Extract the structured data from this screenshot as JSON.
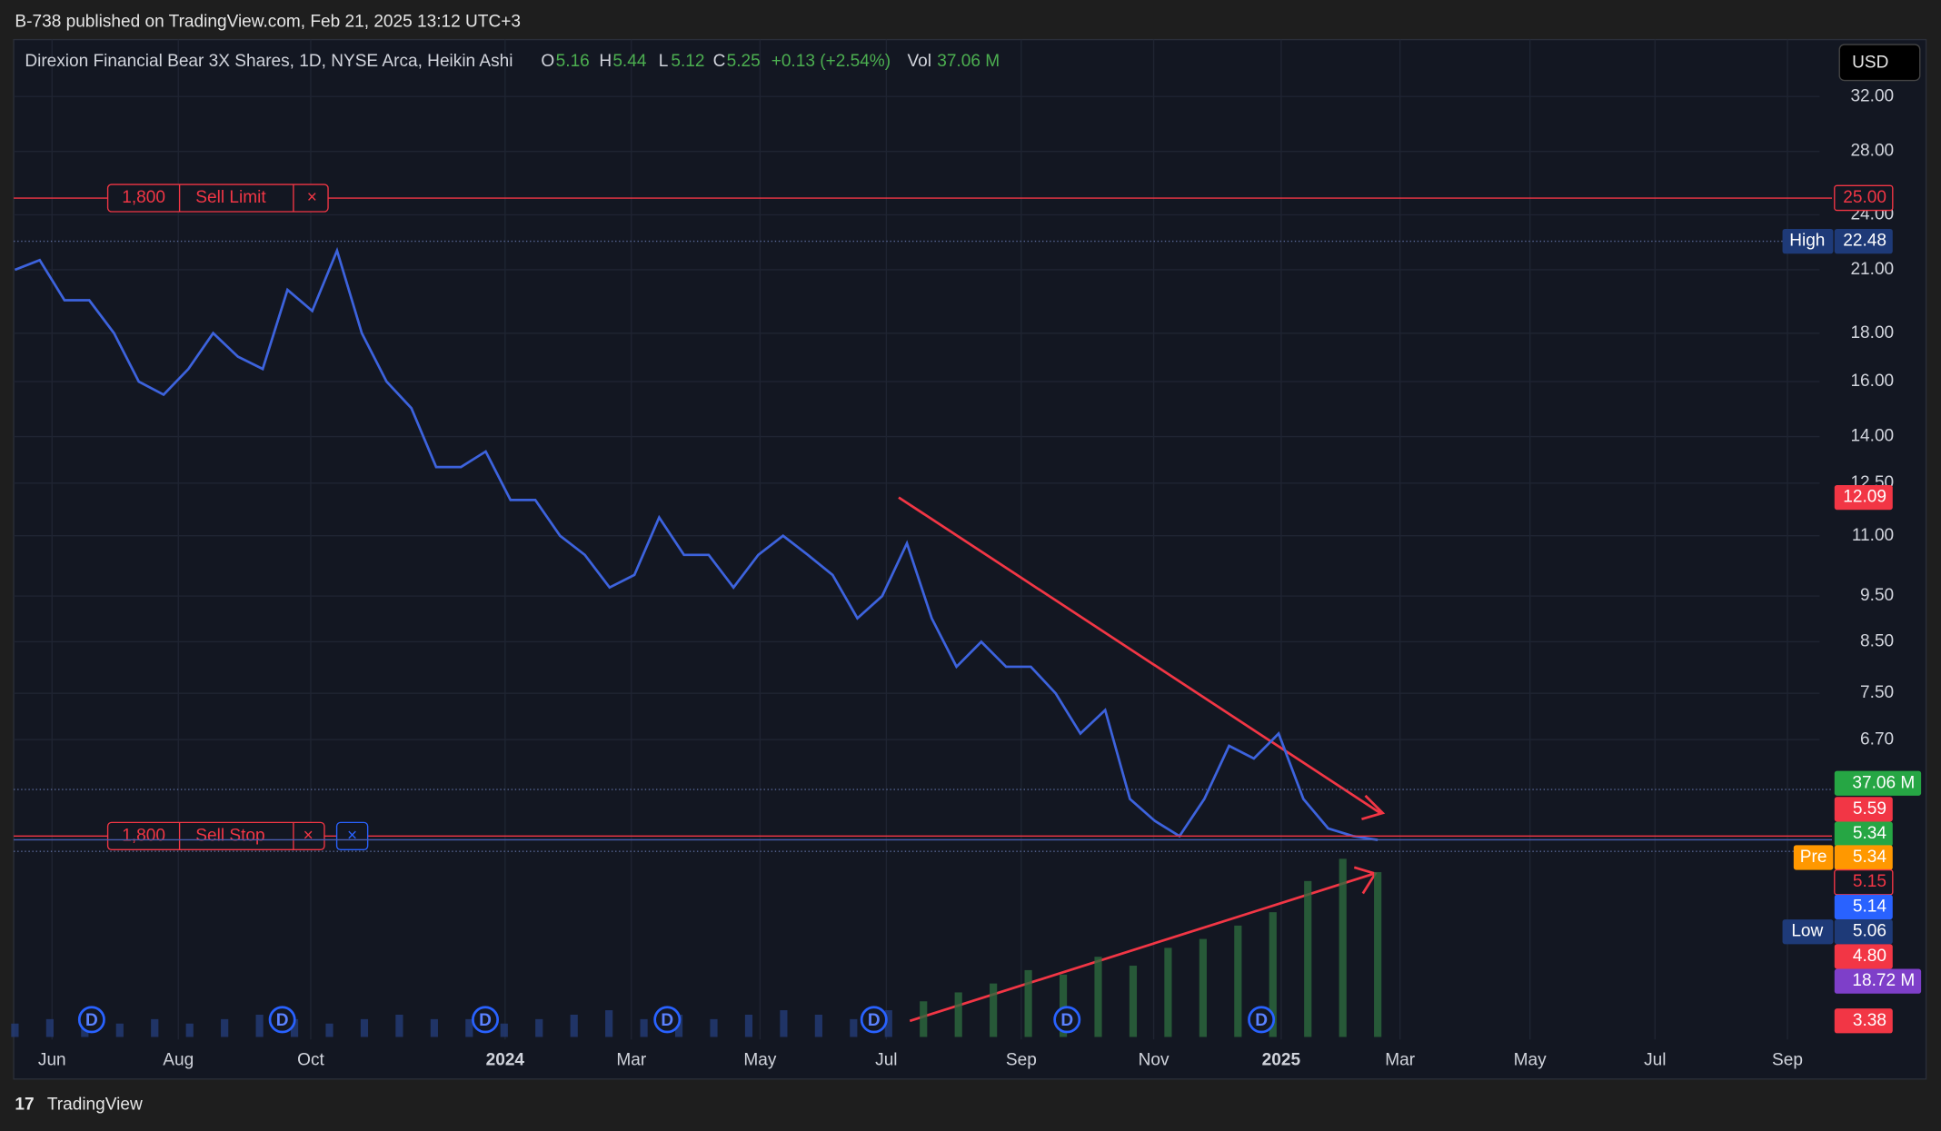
{
  "header": {
    "published": "B-738 published on TradingView.com, Feb 21, 2025 13:12 UTC+3"
  },
  "legend": {
    "symbol": "Direxion Financial Bear 3X Shares, 1D, NYSE Arca, Heikin Ashi",
    "open_label": "O",
    "open": 5.16,
    "high_label": "H",
    "high": 5.44,
    "low_label": "L",
    "low": 5.12,
    "close_label": "C",
    "close": 5.25,
    "change": "+0.13 (+2.54%)",
    "volume_label": "Vol",
    "volume": "37.06 M"
  },
  "currency": "USD",
  "price_axis": {
    "log": true,
    "ticks": [
      {
        "value": 32,
        "label": "32.00"
      },
      {
        "value": 28,
        "label": "28.00"
      },
      {
        "value": 24,
        "label": "24.00"
      },
      {
        "value": 21,
        "label": "21.00"
      },
      {
        "value": 18,
        "label": "18.00"
      },
      {
        "value": 16,
        "label": "16.00"
      },
      {
        "value": 14,
        "label": "14.00"
      },
      {
        "value": 12.5,
        "label": "12.50"
      },
      {
        "value": 11,
        "label": "11.00"
      },
      {
        "value": 9.5,
        "label": "9.50"
      },
      {
        "value": 8.5,
        "label": "8.50"
      },
      {
        "value": 7.5,
        "label": "7.50"
      },
      {
        "value": 6.7,
        "label": "6.70"
      }
    ]
  },
  "time_axis": [
    "Jun",
    "Aug",
    "Oct",
    "2024",
    "Mar",
    "May",
    "Jul",
    "Sep",
    "Nov",
    "2025",
    "Mar",
    "May",
    "Jul",
    "Sep"
  ],
  "orders": [
    {
      "qty": "1,800",
      "type": "Sell Limit",
      "price": 25
    },
    {
      "qty": "1,800",
      "type": "Sell Stop",
      "price": 5.3
    }
  ],
  "price_labels": [
    {
      "text": "25.00"
    },
    {
      "tag": "High",
      "text": "22.48"
    },
    {
      "text": "12.09"
    },
    {
      "text": "37.06 M"
    },
    {
      "text": "5.59"
    },
    {
      "text": "5.34"
    },
    {
      "tag": "Pre",
      "text": "5.34"
    },
    {
      "text": "5.15"
    },
    {
      "text": "5.14"
    },
    {
      "tag": "Low",
      "text": "5.06"
    },
    {
      "text": "4.80"
    },
    {
      "text": "18.72 M"
    },
    {
      "text": "3.38"
    }
  ],
  "dividend_marker": "D",
  "prices": [
    21,
    21.5,
    19.5,
    19.5,
    18,
    16,
    15.5,
    16.5,
    18,
    17,
    16.5,
    20,
    19,
    22,
    18,
    16,
    15,
    13,
    13,
    13.5,
    12,
    12,
    11,
    10.5,
    9.7,
    10,
    11.5,
    10.5,
    10.5,
    9.7,
    10.5,
    11,
    10.5,
    10,
    9,
    9.5,
    10.8,
    9,
    8,
    8.5,
    8,
    8,
    7.5,
    6.8,
    7.2,
    5.8,
    5.5,
    5.3,
    5.8,
    6.6,
    6.4,
    6.8,
    5.8,
    5.4,
    5.3,
    5.25
  ],
  "volumes": [
    3,
    4,
    3,
    3,
    4,
    3,
    4,
    5,
    4,
    3,
    4,
    5,
    4,
    4,
    3,
    4,
    5,
    6,
    4,
    5,
    4,
    5,
    6,
    5,
    4,
    6,
    8,
    10,
    12,
    15,
    14,
    18,
    16,
    20,
    22,
    25,
    28,
    35,
    40,
    37
  ],
  "footer": "TradingView"
}
